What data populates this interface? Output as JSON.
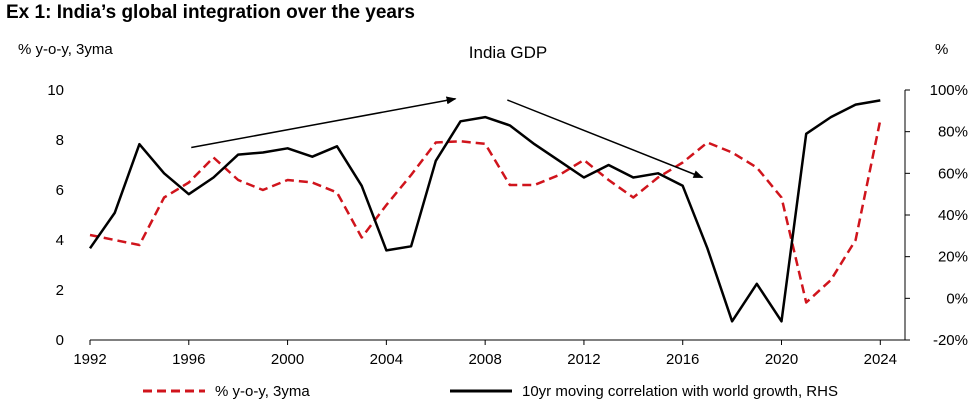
{
  "page_title": "Ex 1: India’s global integration over the years",
  "chart_data": {
    "type": "line",
    "title": "India GDP",
    "ylabel": "% y-o-y, 3yma",
    "ylabel_right": "%",
    "ylim": [
      0,
      10
    ],
    "ylim_right": [
      -20,
      100
    ],
    "y_ticks": [
      0,
      2,
      4,
      6,
      8,
      10
    ],
    "y_ticks_right": [
      "-20%",
      "0%",
      "20%",
      "40%",
      "60%",
      "80%",
      "100%"
    ],
    "xlim": [
      1992,
      2025
    ],
    "x_ticks": [
      1992,
      1996,
      2000,
      2004,
      2008,
      2012,
      2016,
      2020,
      2024
    ],
    "legend_position": "bottom",
    "grid": false,
    "series": [
      {
        "name": "% y-o-y, 3yma",
        "axis": "left",
        "color": "#d0141c",
        "style": "dashed",
        "x": [
          1992,
          1993,
          1994,
          1995,
          1996,
          1997,
          1998,
          1999,
          2000,
          2001,
          2002,
          2003,
          2004,
          2005,
          2006,
          2007,
          2008,
          2009,
          2010,
          2011,
          2012,
          2013,
          2014,
          2015,
          2016,
          2017,
          2018,
          2019,
          2020,
          2021,
          2022,
          2023,
          2024
        ],
        "values": [
          4.2,
          4.0,
          3.8,
          5.7,
          6.3,
          7.3,
          6.4,
          6.0,
          6.4,
          6.3,
          5.9,
          4.1,
          5.4,
          6.6,
          7.9,
          7.95,
          7.85,
          6.2,
          6.2,
          6.6,
          7.2,
          6.4,
          5.7,
          6.5,
          7.1,
          7.9,
          7.5,
          6.9,
          5.7,
          1.5,
          2.4,
          4.0,
          8.8
        ]
      },
      {
        "name": "10yr moving correlation with world growth, RHS",
        "axis": "right",
        "color": "#000000",
        "style": "solid",
        "x": [
          1992,
          1993,
          1994,
          1995,
          1996,
          1997,
          1998,
          1999,
          2000,
          2001,
          2002,
          2003,
          2004,
          2005,
          2006,
          2007,
          2008,
          2009,
          2010,
          2011,
          2012,
          2013,
          2014,
          2015,
          2016,
          2017,
          2018,
          2019,
          2020,
          2021,
          2022,
          2023,
          2024
        ],
        "values": [
          24,
          41,
          74,
          60,
          50,
          58,
          69,
          70,
          72,
          68,
          73,
          54,
          23,
          25,
          66,
          85,
          87,
          83,
          74,
          66,
          58,
          64,
          58,
          60,
          54,
          24,
          -11,
          7,
          -11,
          79,
          87,
          93,
          95
        ]
      }
    ],
    "annotations": [
      {
        "type": "arrow",
        "from": [
          1996.1,
          7.7
        ],
        "to": [
          2006.8,
          9.65
        ]
      },
      {
        "type": "arrow",
        "from": [
          2008.9,
          9.6
        ],
        "to": [
          2016.8,
          6.5
        ]
      }
    ]
  }
}
